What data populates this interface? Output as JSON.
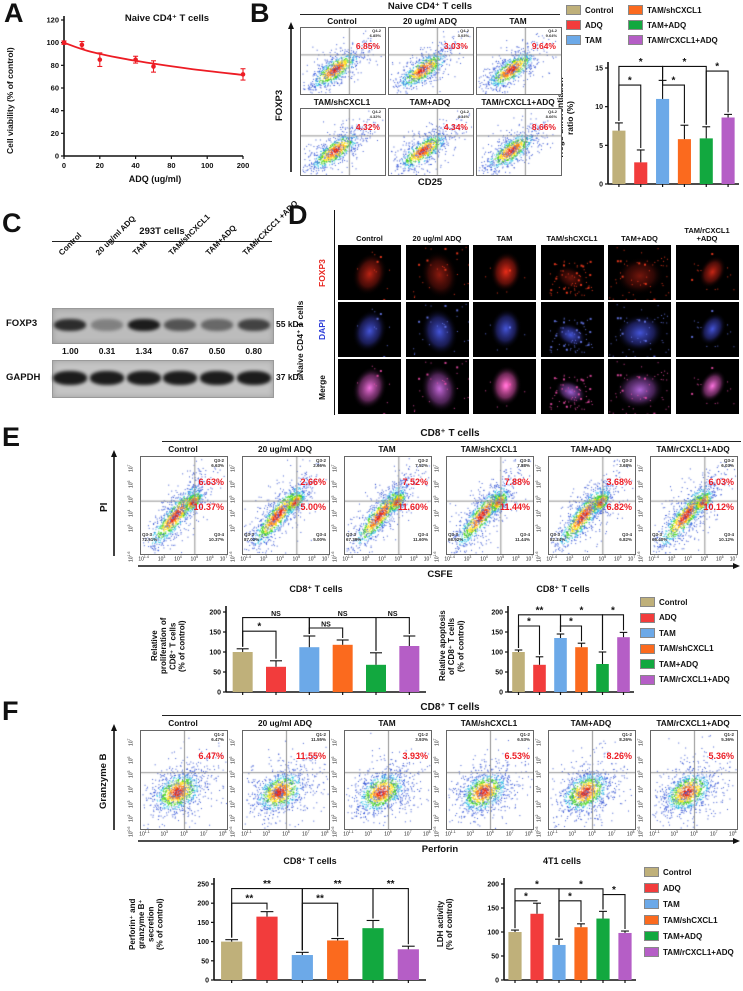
{
  "groups": [
    "Control",
    "ADQ",
    "TAM",
    "TAM/shCXCL1",
    "TAM+ADQ",
    "TAM/rCXCL1+ADQ"
  ],
  "group_colors": [
    "#BFB07A",
    "#F23C3C",
    "#6CA9E8",
    "#FB6A1E",
    "#12A83F",
    "#B55EC6"
  ],
  "accent_red": "#ED1C24",
  "panels": {
    "a": {
      "label": "A",
      "title": "Naive  CD4⁺ T cells",
      "ylabel": "Cell viability (% of control)",
      "xlabel": "ADQ (ug/ml)",
      "yticks": [
        0,
        20,
        40,
        60,
        80,
        100,
        120
      ],
      "xtick_labels": [
        "0",
        "20",
        "40",
        "80",
        "100",
        "200"
      ],
      "xtick_values": [
        0,
        20,
        40,
        80,
        100,
        200
      ],
      "points_x": [
        0,
        10,
        20,
        40,
        60,
        200
      ],
      "points_y": [
        100,
        98,
        85,
        85,
        79,
        72
      ],
      "err": [
        1.5,
        3,
        6,
        3,
        5,
        5
      ],
      "curve": [
        [
          0,
          100
        ],
        [
          15,
          92
        ],
        [
          40,
          84
        ],
        [
          90,
          77
        ],
        [
          200,
          71.5
        ]
      ],
      "line_color": "#ED1C24"
    },
    "b": {
      "label": "B",
      "header": "Naive CD4⁺ T cells",
      "flow_ylabel": "FOXP3",
      "flow_xlabel": "CD25",
      "plots": [
        {
          "title": "Control",
          "q_label": "Q4-2",
          "q_pct": "6.85%",
          "red": "6.85%"
        },
        {
          "title": "20 ug/ml ADQ",
          "q_label": "Q4-2",
          "q_pct": "3.03%",
          "red": "3.03%"
        },
        {
          "title": "TAM",
          "q_label": "Q4-2",
          "q_pct": "9.64%",
          "red": "9.64%"
        },
        {
          "title": "TAM/shCXCL1",
          "q_label": "Q4-2",
          "q_pct": "4.32%",
          "red": "4.32%"
        },
        {
          "title": "TAM+ADQ",
          "q_label": "Q4-2",
          "q_pct": "4.34%",
          "red": "4.34%"
        },
        {
          "title": "TAM/rCXCL1+ADQ",
          "q_label": "Q4-2",
          "q_pct": "8.66%",
          "red": "8.66%"
        }
      ],
      "bar": {
        "ylabel": "Tregs differentiation\nratio (%)",
        "ylim": [
          0,
          15
        ],
        "yticks": [
          0,
          5,
          10,
          15
        ],
        "values": [
          6.9,
          2.8,
          11.0,
          5.8,
          5.9,
          8.6
        ],
        "errors": [
          1.0,
          1.6,
          2.4,
          1.8,
          1.5,
          0.4
        ],
        "sig": [
          [
            0,
            1,
            "*",
            12.8
          ],
          [
            0,
            2,
            "*",
            15.2
          ],
          [
            2,
            3,
            "*",
            12.8
          ],
          [
            2,
            4,
            "*",
            15.2
          ],
          [
            4,
            5,
            "*",
            14.6
          ]
        ]
      }
    },
    "c": {
      "label": "C",
      "header": "293T cells",
      "lanes": [
        "Control",
        "20 ug/ml ADQ",
        "TAM",
        "TAM/shCXCL1",
        "TAM+ADQ",
        "TAM/rCXCC1 +ADQ"
      ],
      "bands": [
        {
          "name": "FOXP3",
          "kda": "55 kDa",
          "values": [
            "1.00",
            "0.31",
            "1.34",
            "0.67",
            "0.50",
            "0.80"
          ],
          "intensities": [
            0.85,
            0.35,
            0.95,
            0.62,
            0.5,
            0.72
          ]
        },
        {
          "name": "GAPDH",
          "kda": "37 kDa",
          "values": [],
          "intensities": [
            0.95,
            0.95,
            0.95,
            0.95,
            0.95,
            0.95
          ]
        }
      ]
    },
    "d": {
      "label": "D",
      "side_label": "Naive CD4⁺  T cells",
      "col_titles": [
        "Control",
        "20 ug/ml ADQ",
        "TAM",
        "TAM/shCXCL1",
        "TAM+ADQ",
        "TAM/rCXCL1 +ADQ"
      ],
      "rows": [
        {
          "name": "FOXP3",
          "color": "#E8261F"
        },
        {
          "name": "DAPI",
          "color": "#2A3BD8"
        },
        {
          "name": "Merge",
          "color": "#111111"
        }
      ]
    },
    "e": {
      "label": "E",
      "header": "CD8⁺ T cells",
      "flow_ylabel": "PI",
      "flow_xlabel": "CSFE",
      "xticks": [
        "10^1.4",
        "10^3",
        "10^4",
        "10^5",
        "10^6",
        "10^7"
      ],
      "yticks": [
        "10^1.6",
        "10^3",
        "10^4",
        "10^5",
        "10^6",
        "10^7"
      ],
      "plots": [
        {
          "title": "Control",
          "q2_label": "Q3-2",
          "q2_pct": "6.63%",
          "red_upper": "6.63%",
          "red_mid": "10.37%",
          "q3_label": "Q3-3",
          "q3_pct": "72.51%",
          "q4_label": "Q3-4",
          "q4_pct": "10.37%"
        },
        {
          "title": "20 ug/ml ADQ",
          "q2_label": "Q3-2",
          "q2_pct": "2.66%",
          "red_upper": "2.66%",
          "red_mid": "5.00%",
          "q3_label": "Q3-3",
          "q3_pct": "87.02%",
          "q4_label": "Q3-4",
          "q4_pct": "5.00%"
        },
        {
          "title": "TAM",
          "q2_label": "Q3-2",
          "q2_pct": "7.52%",
          "red_upper": "7.52%",
          "red_mid": "11.60%",
          "q3_label": "Q3-3",
          "q3_pct": "67.39%",
          "q4_label": "Q3-4",
          "q4_pct": "11.60%"
        },
        {
          "title": "TAM/shCXCL1",
          "q2_label": "Q3-2",
          "q2_pct": "7.88%",
          "red_upper": "7.88%",
          "red_mid": "11.44%",
          "q3_label": "Q3-3",
          "q3_pct": "68.92%",
          "q4_label": "Q3-4",
          "q4_pct": "11.44%"
        },
        {
          "title": "TAM+ADQ",
          "q2_label": "Q3-2",
          "q2_pct": "3.68%",
          "red_upper": "3.68%",
          "red_mid": "6.82%",
          "q3_label": "Q3-3",
          "q3_pct": "82.24%",
          "q4_label": "Q3-4",
          "q4_pct": "6.82%"
        },
        {
          "title": "TAM/rCXCL1+ADQ",
          "q2_label": "Q3-2",
          "q2_pct": "6.03%",
          "red_upper": "6.03%",
          "red_mid": "10.12%",
          "q3_label": "Q3-3",
          "q3_pct": "66.40%",
          "q4_label": "Q3-4",
          "q4_pct": "10.12%"
        }
      ],
      "bar_left": {
        "title": "CD8⁺ T cells",
        "ylabel": "Relative\nproliferation of\nCD8⁺ T cells\n(% of control)",
        "ylim": [
          0,
          200
        ],
        "yticks": [
          0,
          50,
          100,
          150,
          200
        ],
        "values": [
          100,
          63,
          112,
          118,
          68,
          115
        ],
        "errors": [
          8,
          15,
          28,
          12,
          30,
          25
        ],
        "sig": [
          [
            0,
            1,
            "*",
            152
          ],
          [
            0,
            2,
            "NS",
            186
          ],
          [
            2,
            3,
            "NS",
            160
          ],
          [
            2,
            4,
            "NS",
            186
          ],
          [
            4,
            5,
            "NS",
            186
          ]
        ]
      },
      "bar_right": {
        "title": "CD8⁺ T cells",
        "ylabel": "Relative apoptosis\nof CD8⁺ T cells\n(% of control)",
        "ylim": [
          0,
          200
        ],
        "yticks": [
          0,
          50,
          100,
          150,
          200
        ],
        "values": [
          100,
          68,
          135,
          112,
          70,
          137
        ],
        "errors": [
          5,
          20,
          10,
          10,
          30,
          12
        ],
        "sig": [
          [
            0,
            1,
            "*",
            165
          ],
          [
            0,
            2,
            "**",
            193
          ],
          [
            2,
            3,
            "*",
            165
          ],
          [
            2,
            4,
            "*",
            193
          ],
          [
            4,
            5,
            "*",
            193
          ]
        ]
      }
    },
    "f": {
      "label": "F",
      "header": "CD8⁺ T cells",
      "flow_ylabel": "Granzyme B",
      "flow_xlabel": "Perforin",
      "xticks": [
        "10^1.1",
        "10^3",
        "10^5",
        "10^7",
        "10^8"
      ],
      "yticks": [
        "10^0.6",
        "10^2",
        "10^3",
        "10^4",
        "10^5",
        "10^6",
        "10^7"
      ],
      "plots": [
        {
          "title": "Control",
          "q_label": "Q1-2",
          "q_pct": "6.47%",
          "red": "6.47%"
        },
        {
          "title": "20 ug/ml ADQ",
          "q_label": "Q1-2",
          "q_pct": "11.55%",
          "red": "11.55%"
        },
        {
          "title": "TAM",
          "q_label": "Q1-2",
          "q_pct": "3.93%",
          "red": "3.93%"
        },
        {
          "title": "TAM/shCXCL1",
          "q_label": "Q1-2",
          "q_pct": "6.53%",
          "red": "6.53%"
        },
        {
          "title": "TAM+ADQ",
          "q_label": "Q1-2",
          "q_pct": "8.26%",
          "red": "8.26%"
        },
        {
          "title": "TAM/rCXCL1+ADQ",
          "q_label": "Q1-2",
          "q_pct": "5.36%",
          "red": "5.36%"
        }
      ],
      "bar_left": {
        "title": "CD8⁺ T cells",
        "ylabel": "Perforin⁺ and\ngranzyme B⁺\nsecretion\n(% of control)",
        "ylim": [
          0,
          250
        ],
        "yticks": [
          0,
          50,
          100,
          150,
          200,
          250
        ],
        "values": [
          100,
          165,
          65,
          103,
          135,
          80
        ],
        "errors": [
          5,
          13,
          7,
          5,
          20,
          8
        ],
        "sig": [
          [
            0,
            1,
            "**",
            200
          ],
          [
            0,
            2,
            "**",
            238
          ],
          [
            2,
            3,
            "**",
            200
          ],
          [
            2,
            4,
            "**",
            238
          ],
          [
            4,
            5,
            "**",
            238
          ]
        ]
      },
      "bar_right": {
        "title": "4T1 cells",
        "ylabel": "LDH activity\n(% of control)",
        "ylim": [
          0,
          200
        ],
        "yticks": [
          0,
          50,
          100,
          150,
          200
        ],
        "values": [
          100,
          138,
          73,
          110,
          128,
          98
        ],
        "errors": [
          4,
          22,
          12,
          7,
          15,
          4
        ],
        "sig": [
          [
            0,
            1,
            "*",
            165
          ],
          [
            0,
            2,
            "*",
            190
          ],
          [
            2,
            3,
            "*",
            165
          ],
          [
            2,
            4,
            "*",
            190
          ],
          [
            4,
            5,
            "*",
            178
          ]
        ]
      }
    }
  },
  "chart_data": [
    {
      "type": "line",
      "title": "Naive CD4⁺ T cells",
      "xlabel": "ADQ (ug/ml)",
      "ylabel": "Cell viability (% of control)",
      "x": [
        0,
        10,
        20,
        40,
        60,
        200
      ],
      "y": [
        100,
        98,
        85,
        85,
        79,
        72
      ],
      "yerr": [
        1.5,
        3,
        6,
        3,
        5,
        5
      ],
      "xlim": [
        0,
        200
      ],
      "ylim": [
        0,
        120
      ],
      "grid": false
    },
    {
      "type": "bar",
      "title": "Tregs differentiation ratio (%)",
      "categories": [
        "Control",
        "ADQ",
        "TAM",
        "TAM/shCXCL1",
        "TAM+ADQ",
        "TAM/rCXCL1+ADQ"
      ],
      "values": [
        6.9,
        2.8,
        11.0,
        5.8,
        5.9,
        8.6
      ],
      "errors": [
        1.0,
        1.6,
        2.4,
        1.8,
        1.5,
        0.4
      ],
      "ylim": [
        0,
        15
      ],
      "legend_position": "top-right"
    },
    {
      "type": "bar",
      "title": "Relative proliferation of CD8⁺ T cells (% of control)",
      "categories": [
        "Control",
        "ADQ",
        "TAM",
        "TAM/shCXCL1",
        "TAM+ADQ",
        "TAM/rCXCL1+ADQ"
      ],
      "values": [
        100,
        63,
        112,
        118,
        68,
        115
      ],
      "errors": [
        8,
        15,
        28,
        12,
        30,
        25
      ],
      "ylim": [
        0,
        200
      ]
    },
    {
      "type": "bar",
      "title": "Relative apoptosis of CD8⁺ T cells (% of control)",
      "categories": [
        "Control",
        "ADQ",
        "TAM",
        "TAM/shCXCL1",
        "TAM+ADQ",
        "TAM/rCXCL1+ADQ"
      ],
      "values": [
        100,
        68,
        135,
        112,
        70,
        137
      ],
      "errors": [
        5,
        20,
        10,
        10,
        30,
        12
      ],
      "ylim": [
        0,
        200
      ]
    },
    {
      "type": "bar",
      "title": "Perforin⁺ and granzyme B⁺ secretion (% of control)",
      "categories": [
        "Control",
        "ADQ",
        "TAM",
        "TAM/shCXCL1",
        "TAM+ADQ",
        "TAM/rCXCL1+ADQ"
      ],
      "values": [
        100,
        165,
        65,
        103,
        135,
        80
      ],
      "errors": [
        5,
        13,
        7,
        5,
        20,
        8
      ],
      "ylim": [
        0,
        250
      ]
    },
    {
      "type": "bar",
      "title": "LDH activity (% of control) 4T1 cells",
      "categories": [
        "Control",
        "ADQ",
        "TAM",
        "TAM/shCXCL1",
        "TAM+ADQ",
        "TAM/rCXCL1+ADQ"
      ],
      "values": [
        100,
        138,
        73,
        110,
        128,
        98
      ],
      "errors": [
        4,
        22,
        12,
        7,
        15,
        4
      ],
      "ylim": [
        0,
        200
      ]
    }
  ]
}
